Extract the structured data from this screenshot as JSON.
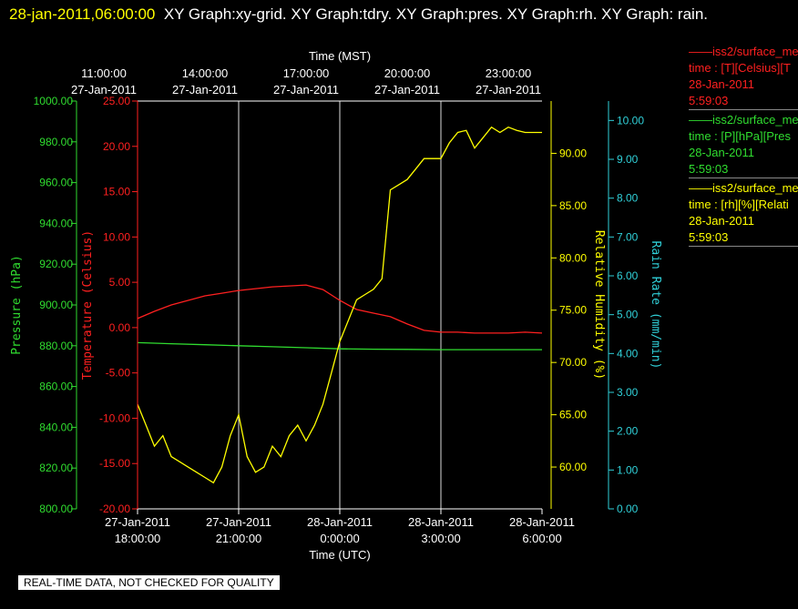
{
  "header": {
    "timestamp": "28-jan-2011,06:00:00",
    "graphs": "XY Graph:xy-grid.  XY Graph:tdry.  XY Graph:pres.  XY Graph:rh.  XY Graph: rain."
  },
  "footer": {
    "quality_notice": "REAL-TIME DATA, NOT CHECKED FOR QUALITY"
  },
  "legend": [
    {
      "line1": "iss2/surface_me",
      "line2": "time : [T][Celsius][T",
      "line3": "28-Jan-2011",
      "line4": "5:59:03",
      "color": "#ff2020"
    },
    {
      "line1": "iss2/surface_me",
      "line2": "time : [P][hPa][Pres",
      "line3": "28-Jan-2011",
      "line4": "5:59:03",
      "color": "#30dd30"
    },
    {
      "line1": "iss2/surface_me",
      "line2": "time : [rh][%][Relati",
      "line3": "28-Jan-2011",
      "line4": "5:59:03",
      "color": "#ffff00"
    }
  ],
  "chart_data": {
    "type": "line",
    "top_axis": {
      "label": "Time (MST)",
      "ticks": [
        {
          "time": "11:00:00",
          "date": "27-Jan-2011"
        },
        {
          "time": "14:00:00",
          "date": "27-Jan-2011"
        },
        {
          "time": "17:00:00",
          "date": "27-Jan-2011"
        },
        {
          "time": "20:00:00",
          "date": "27-Jan-2011"
        },
        {
          "time": "23:00:00",
          "date": "27-Jan-2011"
        }
      ]
    },
    "bottom_axis": {
      "label": "Time (UTC)",
      "xlim": [
        "2011-01-27T18:00:00",
        "2011-01-28T06:00:00"
      ],
      "ticks": [
        {
          "date": "27-Jan-2011",
          "time": "18:00:00"
        },
        {
          "date": "27-Jan-2011",
          "time": "21:00:00"
        },
        {
          "date": "28-Jan-2011",
          "time": "0:00:00"
        },
        {
          "date": "28-Jan-2011",
          "time": "3:00:00"
        },
        {
          "date": "28-Jan-2011",
          "time": "6:00:00"
        }
      ]
    },
    "y_axes": [
      {
        "id": "pres",
        "label": "Pressure (hPa)",
        "ylim": [
          800,
          1000
        ],
        "ticks": [
          "800.00",
          "820.00",
          "840.00",
          "860.00",
          "880.00",
          "900.00",
          "920.00",
          "940.00",
          "960.00",
          "980.00",
          "1000.00"
        ],
        "color": "#30dd30"
      },
      {
        "id": "tdry",
        "label": "Temperature (Celsius)",
        "ylim": [
          -20,
          25
        ],
        "ticks": [
          "-20.00",
          "-15.00",
          "-10.00",
          "-5.00",
          "0.00",
          "5.00",
          "10.00",
          "15.00",
          "20.00",
          "25.00"
        ],
        "color": "#ff2020"
      },
      {
        "id": "rh",
        "label": "Relative Humidity (%)",
        "ylim": [
          56,
          95
        ],
        "ticks": [
          "60.00",
          "65.00",
          "70.00",
          "75.00",
          "80.00",
          "85.00",
          "90.00"
        ],
        "color": "#ffff00"
      },
      {
        "id": "rain",
        "label": "Rain Rate (mm/min)",
        "ylim": [
          0,
          10.5
        ],
        "ticks": [
          "0.00",
          "1.00",
          "2.00",
          "3.00",
          "4.00",
          "5.00",
          "6.00",
          "7.00",
          "8.00",
          "9.00",
          "10.00"
        ],
        "color": "#30d0d8"
      }
    ],
    "grid": true,
    "series": [
      {
        "axis": "tdry",
        "color": "#ff2020",
        "x_hours": [
          0,
          0.5,
          1,
          1.5,
          2,
          2.5,
          3,
          3.5,
          4,
          4.5,
          5,
          5.5,
          6,
          6.5,
          7,
          7.5,
          8,
          8.5,
          9,
          9.5,
          10,
          10.5,
          11,
          11.5,
          12
        ],
        "values": [
          1.0,
          1.8,
          2.5,
          3.0,
          3.5,
          3.8,
          4.1,
          4.3,
          4.5,
          4.6,
          4.7,
          4.2,
          3.0,
          2.0,
          1.6,
          1.2,
          0.4,
          -0.3,
          -0.5,
          -0.5,
          -0.6,
          -0.6,
          -0.6,
          -0.5,
          -0.6
        ]
      },
      {
        "axis": "pres",
        "color": "#30dd30",
        "x_hours": [
          0,
          1,
          2,
          3,
          4,
          5,
          6,
          7,
          8,
          9,
          10,
          11,
          12
        ],
        "values": [
          881.5,
          881.0,
          880.5,
          880.0,
          879.5,
          879.0,
          878.5,
          878.3,
          878.2,
          878.1,
          878.1,
          878.1,
          878.1
        ]
      },
      {
        "axis": "rh",
        "color": "#ffff00",
        "x_hours": [
          0,
          0.25,
          0.5,
          0.75,
          1,
          1.25,
          1.5,
          1.75,
          2,
          2.25,
          2.5,
          2.75,
          3,
          3.25,
          3.5,
          3.75,
          4,
          4.25,
          4.5,
          4.75,
          5,
          5.25,
          5.5,
          5.75,
          6,
          6.25,
          6.5,
          6.75,
          7,
          7.25,
          7.5,
          7.75,
          8,
          8.25,
          8.5,
          8.75,
          9,
          9.25,
          9.5,
          9.75,
          10,
          10.25,
          10.5,
          10.75,
          11,
          11.25,
          11.5,
          11.75,
          12
        ],
        "values": [
          66,
          64,
          62,
          63,
          61,
          60.5,
          60,
          59.5,
          59,
          58.5,
          60,
          63,
          65,
          61,
          59.5,
          60,
          62,
          61,
          63,
          64,
          62.5,
          64,
          66,
          69,
          72,
          74,
          76,
          76.5,
          77,
          78,
          86.5,
          87,
          87.5,
          88.5,
          89.5,
          89.5,
          89.5,
          91,
          92,
          92.2,
          90.5,
          91.5,
          92.5,
          92,
          92.5,
          92.2,
          92,
          92,
          92
        ]
      }
    ]
  }
}
